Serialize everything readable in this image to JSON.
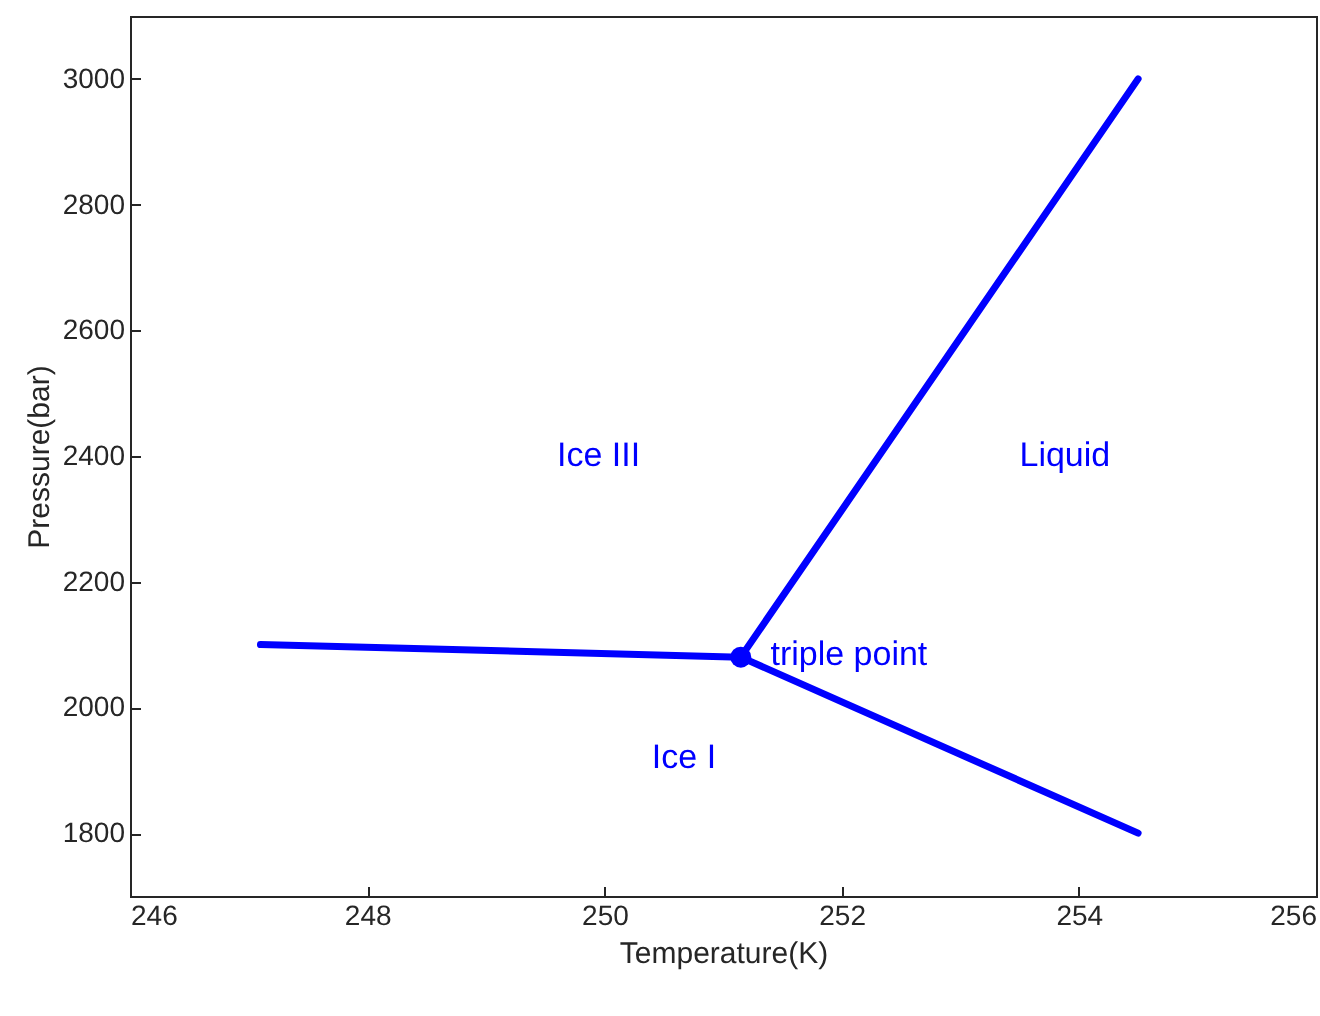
{
  "chart_data": {
    "type": "line",
    "xlabel": "Temperature(K)",
    "ylabel": "Pressure(bar)",
    "xlim": [
      246,
      256
    ],
    "xticks": [
      246,
      248,
      250,
      252,
      254,
      256
    ],
    "ylim": [
      1700,
      3100
    ],
    "yticks": [
      1800,
      2000,
      2200,
      2400,
      2600,
      2800,
      3000
    ],
    "grid": false,
    "line_style": "solid",
    "series": [
      {
        "color": "#0000ff",
        "x": [
          247.1,
          251.15
        ],
        "values": [
          2100,
          2080
        ]
      },
      {
        "color": "#0000ff",
        "x": [
          251.15,
          254.5
        ],
        "values": [
          2080,
          3000
        ]
      },
      {
        "color": "#0000ff",
        "x": [
          251.15,
          254.5
        ],
        "values": [
          2080,
          1800
        ]
      },
      {
        "type": "scatter",
        "color": "#0000ff",
        "marker": "circle",
        "x": [
          251.15
        ],
        "values": [
          2080
        ]
      }
    ],
    "annotations": [
      "Ice III",
      "Liquid",
      {
        "text": "triple point",
        "x": 251.4,
        "y": 2083
      },
      "Ice I"
    ]
  }
}
